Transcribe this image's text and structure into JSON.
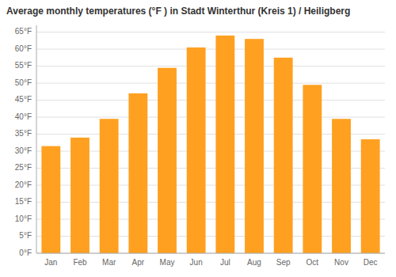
{
  "chart_data": {
    "type": "bar",
    "title": "Average monthly temperatures (°F ) in Stadt Winterthur (Kreis 1) / Heiligberg",
    "categories": [
      "Jan",
      "Feb",
      "Mar",
      "Apr",
      "May",
      "Jun",
      "Jul",
      "Aug",
      "Sep",
      "Oct",
      "Nov",
      "Dec"
    ],
    "values": [
      31.5,
      34.0,
      39.5,
      47.0,
      54.5,
      60.5,
      64.0,
      63.0,
      57.5,
      49.5,
      39.5,
      33.5
    ],
    "color": "#FFA020",
    "ylim": [
      0,
      67
    ],
    "yticks": [
      {
        "value": 0,
        "label": "0°F"
      },
      {
        "value": 5,
        "label": "5°F"
      },
      {
        "value": 10,
        "label": "10°F"
      },
      {
        "value": 15,
        "label": "15°F"
      },
      {
        "value": 20,
        "label": "20°F"
      },
      {
        "value": 25,
        "label": "25°F"
      },
      {
        "value": 30,
        "label": "30°F"
      },
      {
        "value": 35,
        "label": "35°F"
      },
      {
        "value": 40,
        "label": "40°F"
      },
      {
        "value": 45,
        "label": "45°F"
      },
      {
        "value": 50,
        "label": "50°F"
      },
      {
        "value": 55,
        "label": "55°F"
      },
      {
        "value": 60,
        "label": "60°F"
      },
      {
        "value": 65,
        "label": "65°F"
      }
    ],
    "grid": true
  }
}
